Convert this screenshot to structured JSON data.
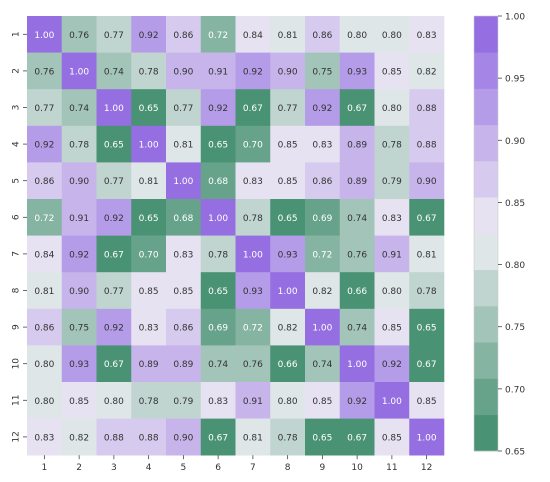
{
  "chart_data": {
    "type": "heatmap",
    "title": "",
    "xlabel": "",
    "ylabel": "",
    "x_tick_labels": [
      "1",
      "2",
      "3",
      "4",
      "5",
      "6",
      "7",
      "8",
      "9",
      "10",
      "11",
      "12"
    ],
    "y_tick_labels": [
      "1",
      "2",
      "3",
      "4",
      "5",
      "6",
      "7",
      "8",
      "9",
      "10",
      "11",
      "12"
    ],
    "values": [
      [
        1.0,
        0.76,
        0.77,
        0.92,
        0.86,
        0.72,
        0.84,
        0.81,
        0.86,
        0.8,
        0.8,
        0.83
      ],
      [
        0.76,
        1.0,
        0.74,
        0.78,
        0.9,
        0.91,
        0.92,
        0.9,
        0.75,
        0.93,
        0.85,
        0.82
      ],
      [
        0.77,
        0.74,
        1.0,
        0.65,
        0.77,
        0.92,
        0.67,
        0.77,
        0.92,
        0.67,
        0.8,
        0.88
      ],
      [
        0.92,
        0.78,
        0.65,
        1.0,
        0.81,
        0.65,
        0.7,
        0.85,
        0.83,
        0.89,
        0.78,
        0.88
      ],
      [
        0.86,
        0.9,
        0.77,
        0.81,
        1.0,
        0.68,
        0.83,
        0.85,
        0.86,
        0.89,
        0.79,
        0.9
      ],
      [
        0.72,
        0.91,
        0.92,
        0.65,
        0.68,
        1.0,
        0.78,
        0.65,
        0.69,
        0.74,
        0.83,
        0.67
      ],
      [
        0.84,
        0.92,
        0.67,
        0.7,
        0.83,
        0.78,
        1.0,
        0.93,
        0.72,
        0.76,
        0.91,
        0.81
      ],
      [
        0.81,
        0.9,
        0.77,
        0.85,
        0.85,
        0.65,
        0.93,
        1.0,
        0.82,
        0.66,
        0.8,
        0.78
      ],
      [
        0.86,
        0.75,
        0.92,
        0.83,
        0.86,
        0.69,
        0.72,
        0.82,
        1.0,
        0.74,
        0.85,
        0.65
      ],
      [
        0.8,
        0.93,
        0.67,
        0.89,
        0.89,
        0.74,
        0.76,
        0.66,
        0.74,
        1.0,
        0.92,
        0.67
      ],
      [
        0.8,
        0.85,
        0.8,
        0.78,
        0.79,
        0.83,
        0.91,
        0.8,
        0.85,
        0.92,
        1.0,
        0.85
      ],
      [
        0.83,
        0.82,
        0.88,
        0.88,
        0.9,
        0.67,
        0.81,
        0.78,
        0.65,
        0.67,
        0.85,
        1.0
      ]
    ],
    "value_format": "0.00",
    "vmin": 0.65,
    "vmax": 1.0,
    "colorbar": {
      "tick_values": [
        0.65,
        0.7,
        0.75,
        0.8,
        0.85,
        0.9,
        0.95,
        1.0
      ],
      "tick_labels": [
        "0.65",
        "0.70",
        "0.75",
        "0.80",
        "0.85",
        "0.90",
        "0.95",
        "1.00"
      ],
      "n_bins": 12,
      "placement": "right"
    },
    "colors": {
      "low": "#3a8a68",
      "mid": "#eeeef2",
      "high": "#8d62e0",
      "text_light": "#ffffff",
      "text_dark": "#333333"
    },
    "grid": false
  }
}
